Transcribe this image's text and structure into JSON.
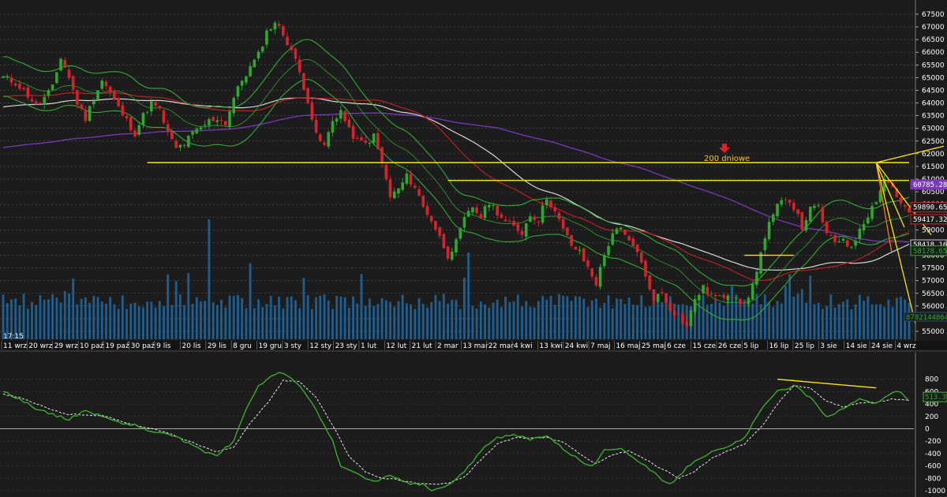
{
  "time_label": "17:15",
  "annotation": "200 dniowe",
  "colors": {
    "up": "#2ea82e",
    "down": "#d8232a",
    "volume": "#1d5f93",
    "sma_white": "#d8d8d8",
    "sma_red": "#c02020",
    "sma_purple": "#7a3ab8",
    "sma_green": "#2fae2f",
    "level": "#ffe600",
    "oscillator": "#3bb82b",
    "signal": "#e8e8e8",
    "annotation": "#ffc600"
  },
  "chart_data": [
    {
      "type": "candlestick",
      "ylim": [
        55000,
        67500
      ],
      "y_ticks": [
        55000,
        55500,
        56000,
        56500,
        57000,
        57500,
        58000,
        58500,
        59000,
        59500,
        60000,
        60500,
        61000,
        61500,
        62000,
        62500,
        63000,
        63500,
        64000,
        64500,
        65000,
        65500,
        66000,
        66500,
        67000,
        67500
      ],
      "x_ticks": [
        "11 wrz",
        "20 wrz",
        "29 wrz",
        "10 paź",
        "19 paź",
        "30 paź",
        "9 lis",
        "20 lis",
        "29 lis",
        "8 gru",
        "19 gru",
        "3 sty",
        "12 sty",
        "23 sty",
        "1 lut",
        "12 lut",
        "21 lut",
        "2 mar",
        "13 mar",
        "22 mar",
        "4 kwi",
        "13 kwi",
        "24 kwi",
        "7 maj",
        "16 maj",
        "25 maj",
        "6 cze",
        "15 cze",
        "26 cze",
        "5 lip",
        "16 lip",
        "25 lip",
        "3 sie",
        "14 sie",
        "24 sie",
        "4 wrz"
      ],
      "close_path": [
        [
          0,
          65000
        ],
        [
          3,
          64800
        ],
        [
          6,
          64300
        ],
        [
          8,
          63900
        ],
        [
          10,
          64200
        ],
        [
          12,
          64600
        ],
        [
          14,
          65800
        ],
        [
          16,
          65000
        ],
        [
          18,
          64000
        ],
        [
          20,
          63400
        ],
        [
          22,
          64200
        ],
        [
          24,
          64900
        ],
        [
          26,
          64400
        ],
        [
          28,
          63800
        ],
        [
          30,
          63300
        ],
        [
          32,
          62800
        ],
        [
          34,
          63500
        ],
        [
          36,
          64000
        ],
        [
          38,
          63700
        ],
        [
          40,
          62800
        ],
        [
          42,
          62200
        ],
        [
          44,
          62400
        ],
        [
          46,
          62800
        ],
        [
          48,
          63000
        ],
        [
          50,
          63300
        ],
        [
          52,
          63400
        ],
        [
          54,
          63200
        ],
        [
          56,
          64200
        ],
        [
          58,
          64900
        ],
        [
          60,
          65400
        ],
        [
          62,
          65900
        ],
        [
          64,
          66800
        ],
        [
          66,
          67200
        ],
        [
          68,
          66700
        ],
        [
          70,
          66100
        ],
        [
          72,
          65200
        ],
        [
          74,
          64100
        ],
        [
          76,
          62700
        ],
        [
          78,
          62300
        ],
        [
          80,
          63300
        ],
        [
          82,
          63700
        ],
        [
          84,
          62900
        ],
        [
          86,
          62500
        ],
        [
          88,
          62400
        ],
        [
          90,
          62700
        ],
        [
          92,
          61600
        ],
        [
          94,
          60300
        ],
        [
          96,
          60600
        ],
        [
          98,
          61100
        ],
        [
          100,
          60700
        ],
        [
          102,
          59900
        ],
        [
          104,
          59400
        ],
        [
          106,
          58700
        ],
        [
          108,
          58000
        ],
        [
          110,
          58500
        ],
        [
          112,
          59400
        ],
        [
          114,
          59900
        ],
        [
          116,
          59500
        ],
        [
          118,
          60100
        ],
        [
          120,
          59700
        ],
        [
          122,
          59300
        ],
        [
          124,
          59100
        ],
        [
          126,
          58900
        ],
        [
          128,
          59600
        ],
        [
          130,
          59400
        ],
        [
          132,
          60300
        ],
        [
          134,
          59700
        ],
        [
          136,
          59000
        ],
        [
          138,
          58400
        ],
        [
          140,
          58100
        ],
        [
          142,
          57500
        ],
        [
          144,
          56900
        ],
        [
          146,
          58000
        ],
        [
          148,
          58900
        ],
        [
          150,
          59000
        ],
        [
          152,
          58500
        ],
        [
          154,
          58200
        ],
        [
          156,
          57100
        ],
        [
          158,
          56300
        ],
        [
          160,
          56500
        ],
        [
          162,
          55900
        ],
        [
          164,
          55600
        ],
        [
          166,
          55200
        ],
        [
          168,
          56300
        ],
        [
          170,
          56700
        ],
        [
          172,
          56400
        ],
        [
          174,
          56300
        ],
        [
          176,
          56500
        ],
        [
          178,
          56400
        ],
        [
          180,
          56000
        ],
        [
          182,
          56800
        ],
        [
          184,
          58100
        ],
        [
          186,
          59200
        ],
        [
          188,
          59900
        ],
        [
          190,
          60300
        ],
        [
          192,
          59900
        ],
        [
          194,
          59100
        ],
        [
          196,
          59800
        ],
        [
          198,
          59900
        ],
        [
          200,
          58800
        ],
        [
          202,
          58500
        ],
        [
          204,
          58700
        ],
        [
          206,
          58200
        ],
        [
          208,
          59100
        ],
        [
          210,
          59600
        ],
        [
          212,
          60200
        ],
        [
          214,
          61000
        ],
        [
          216,
          60700
        ],
        [
          218,
          60000
        ],
        [
          220,
          59700
        ]
      ],
      "last_date_index": 220,
      "horizontal_levels": [
        {
          "y": 61650,
          "from": 35,
          "to": 220
        },
        {
          "y": 60950,
          "from": 108,
          "to": 220
        },
        {
          "y": 58000,
          "from": 180,
          "to": 192
        }
      ],
      "price_tags": [
        "60785.28",
        "59890.65",
        "59417.32",
        "58418.16",
        "58178.65"
      ],
      "volume_tag": "8782144864",
      "annotation_index": 150
    },
    {
      "type": "line",
      "ylim": [
        -1000,
        1000
      ],
      "y_ticks": [
        -1000,
        -800,
        -600,
        -400,
        -200,
        0,
        200,
        400,
        600,
        800
      ],
      "zero_line": 0,
      "last_value": "513.37",
      "series_points": [
        [
          0,
          600
        ],
        [
          4,
          480
        ],
        [
          8,
          330
        ],
        [
          12,
          230
        ],
        [
          16,
          150
        ],
        [
          20,
          300
        ],
        [
          24,
          200
        ],
        [
          28,
          100
        ],
        [
          32,
          60
        ],
        [
          36,
          -50
        ],
        [
          40,
          -80
        ],
        [
          44,
          -200
        ],
        [
          48,
          -350
        ],
        [
          52,
          -430
        ],
        [
          56,
          -200
        ],
        [
          58,
          150
        ],
        [
          60,
          450
        ],
        [
          62,
          700
        ],
        [
          66,
          880
        ],
        [
          68,
          900
        ],
        [
          72,
          700
        ],
        [
          76,
          300
        ],
        [
          80,
          -200
        ],
        [
          82,
          -600
        ],
        [
          86,
          -740
        ],
        [
          90,
          -850
        ],
        [
          94,
          -760
        ],
        [
          98,
          -880
        ],
        [
          102,
          -900
        ],
        [
          104,
          -1000
        ],
        [
          108,
          -920
        ],
        [
          112,
          -700
        ],
        [
          116,
          -350
        ],
        [
          120,
          -150
        ],
        [
          124,
          -100
        ],
        [
          128,
          -170
        ],
        [
          132,
          -100
        ],
        [
          136,
          -320
        ],
        [
          140,
          -500
        ],
        [
          142,
          -600
        ],
        [
          144,
          -560
        ],
        [
          146,
          -350
        ],
        [
          150,
          -300
        ],
        [
          154,
          -520
        ],
        [
          158,
          -700
        ],
        [
          160,
          -850
        ],
        [
          162,
          -900
        ],
        [
          164,
          -760
        ],
        [
          168,
          -500
        ],
        [
          172,
          -380
        ],
        [
          176,
          -300
        ],
        [
          180,
          -150
        ],
        [
          184,
          300
        ],
        [
          188,
          600
        ],
        [
          192,
          700
        ],
        [
          196,
          500
        ],
        [
          200,
          200
        ],
        [
          204,
          320
        ],
        [
          208,
          500
        ],
        [
          212,
          400
        ],
        [
          216,
          600
        ],
        [
          218,
          580
        ],
        [
          220,
          450
        ]
      ],
      "signal_points": [
        [
          0,
          560
        ],
        [
          4,
          500
        ],
        [
          8,
          400
        ],
        [
          12,
          300
        ],
        [
          16,
          230
        ],
        [
          20,
          230
        ],
        [
          24,
          210
        ],
        [
          28,
          140
        ],
        [
          32,
          60
        ],
        [
          36,
          0
        ],
        [
          40,
          -70
        ],
        [
          44,
          -170
        ],
        [
          48,
          -280
        ],
        [
          52,
          -380
        ],
        [
          56,
          -300
        ],
        [
          60,
          100
        ],
        [
          64,
          400
        ],
        [
          68,
          780
        ],
        [
          72,
          760
        ],
        [
          76,
          500
        ],
        [
          80,
          60
        ],
        [
          84,
          -450
        ],
        [
          88,
          -700
        ],
        [
          92,
          -800
        ],
        [
          96,
          -820
        ],
        [
          100,
          -880
        ],
        [
          104,
          -900
        ],
        [
          108,
          -880
        ],
        [
          112,
          -780
        ],
        [
          116,
          -500
        ],
        [
          120,
          -250
        ],
        [
          124,
          -150
        ],
        [
          128,
          -150
        ],
        [
          132,
          -140
        ],
        [
          136,
          -220
        ],
        [
          140,
          -410
        ],
        [
          144,
          -560
        ],
        [
          148,
          -420
        ],
        [
          152,
          -360
        ],
        [
          156,
          -500
        ],
        [
          160,
          -650
        ],
        [
          164,
          -800
        ],
        [
          168,
          -680
        ],
        [
          172,
          -480
        ],
        [
          176,
          -360
        ],
        [
          180,
          -250
        ],
        [
          184,
          20
        ],
        [
          188,
          400
        ],
        [
          192,
          700
        ],
        [
          196,
          650
        ],
        [
          200,
          450
        ],
        [
          204,
          350
        ],
        [
          208,
          420
        ],
        [
          212,
          430
        ],
        [
          216,
          480
        ],
        [
          220,
          460
        ]
      ],
      "trend_line": {
        "from": [
          188,
          800
        ],
        "to": [
          212,
          660
        ]
      }
    }
  ]
}
